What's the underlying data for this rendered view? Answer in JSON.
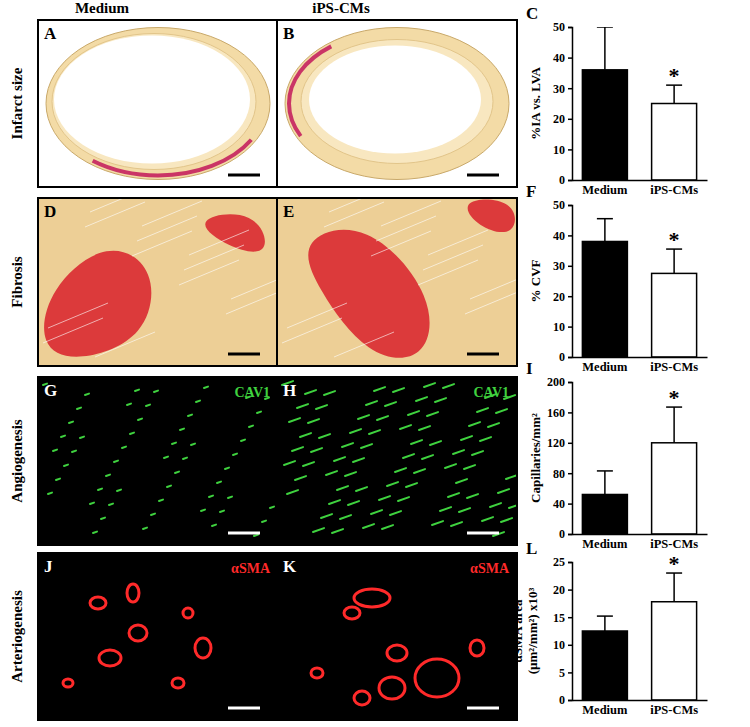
{
  "figure": {
    "column_headers": [
      "Medium",
      "iPS-CMs"
    ],
    "row_labels": [
      "Infarct size",
      "Fibrosis",
      "Angiogenesis",
      "Arteriogenesis"
    ],
    "image_panels": [
      {
        "letter": "A"
      },
      {
        "letter": "B"
      },
      {
        "letter": "D"
      },
      {
        "letter": "E"
      },
      {
        "letter": "G",
        "stain": "CAV1",
        "color": "#3fd23f"
      },
      {
        "letter": "H",
        "stain": "CAV1",
        "color": "#3fd23f"
      },
      {
        "letter": "J",
        "stain": "αSMA",
        "color": "#ff2a2a"
      },
      {
        "letter": "K",
        "stain": "αSMA",
        "color": "#ff2a2a"
      }
    ],
    "chart_letters": [
      "C",
      "F",
      "I",
      "L"
    ]
  },
  "chart_data": [
    {
      "type": "bar",
      "categories": [
        "Medium",
        "iPS-CMs"
      ],
      "values": [
        36,
        25
      ],
      "errors": [
        14,
        6
      ],
      "colors": [
        "#000000",
        "#ffffff"
      ],
      "y_label": "%IA vs. LVA",
      "ylim": [
        0,
        50
      ],
      "yticks": [
        0,
        10,
        20,
        30,
        40,
        50
      ],
      "annotations": [
        {
          "text": "*",
          "category": "iPS-CMs"
        }
      ]
    },
    {
      "type": "bar",
      "categories": [
        "Medium",
        "iPS-CMs"
      ],
      "values": [
        38,
        27.5
      ],
      "errors": [
        7.5,
        8
      ],
      "colors": [
        "#000000",
        "#ffffff"
      ],
      "y_label": "% CVF",
      "ylim": [
        0,
        50
      ],
      "yticks": [
        0,
        10,
        20,
        30,
        40,
        50
      ],
      "annotations": [
        {
          "text": "*",
          "category": "iPS-CMs"
        }
      ]
    },
    {
      "type": "bar",
      "categories": [
        "Medium",
        "iPS-CMs"
      ],
      "values": [
        52,
        120
      ],
      "errors": [
        31,
        47
      ],
      "colors": [
        "#000000",
        "#ffffff"
      ],
      "y_label": "Capillaries/mm²",
      "ylim": [
        0,
        200
      ],
      "yticks": [
        0,
        40,
        80,
        120,
        160,
        200
      ],
      "annotations": [
        {
          "text": "*",
          "category": "iPS-CMs"
        }
      ]
    },
    {
      "type": "bar",
      "categories": [
        "Medium",
        "iPS-CMs"
      ],
      "values": [
        12.5,
        17.8
      ],
      "errors": [
        2.7,
        5.2
      ],
      "colors": [
        "#000000",
        "#ffffff"
      ],
      "y_label": [
        "αSMA area",
        "(µm²/mm²) x10³"
      ],
      "ylim": [
        0,
        25
      ],
      "yticks": [
        0,
        5,
        10,
        15,
        20,
        25
      ],
      "annotations": [
        {
          "text": "*",
          "category": "iPS-CMs"
        }
      ]
    }
  ]
}
